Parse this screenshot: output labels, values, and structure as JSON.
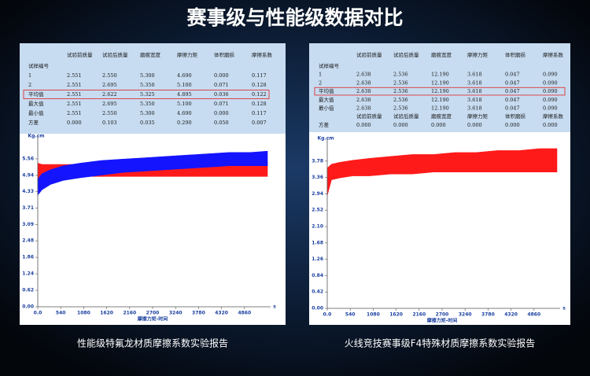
{
  "title": "赛事级与性能级数据对比",
  "captions": [
    "性能级特氟龙材质摩擦系数实验报告",
    "火线竞技赛事级F4特殊材质摩擦系数实验报告"
  ],
  "tables": [
    {
      "header": [
        "",
        "试验前质量",
        "试验后质量",
        "磨痕宽度",
        "摩擦力矩",
        "体积磨损",
        "摩擦系数"
      ],
      "highlight_row": 3,
      "rows": [
        [
          "试样编号"
        ],
        [
          "1",
          "2.551",
          "2.550",
          "5.300",
          "4.690",
          "0.000",
          "0.117"
        ],
        [
          "2",
          "2.551",
          "2.695",
          "5.350",
          "5.100",
          "0.071",
          "0.128"
        ],
        [
          "平均值",
          "2.551",
          "2.622",
          "5.325",
          "4.895",
          "0.036",
          "0.122"
        ],
        [
          "最大值",
          "2.551",
          "2.695",
          "5.350",
          "5.100",
          "0.071",
          "0.128"
        ],
        [
          "最小值",
          "2.551",
          "2.550",
          "5.300",
          "4.690",
          "0.000",
          "0.117"
        ],
        [
          "方差",
          "0.000",
          "0.103",
          "0.035",
          "0.290",
          "0.050",
          "0.007"
        ]
      ]
    },
    {
      "header": [
        "",
        "试验前质量",
        "试验后质量",
        "磨痕宽度",
        "摩擦力矩",
        "体积磨损",
        "摩擦系数"
      ],
      "highlight_row": 3,
      "rows": [
        [
          "试样编号"
        ],
        [
          "1",
          "2.638",
          "2.536",
          "12.190",
          "3.618",
          "0.047",
          "0.090"
        ],
        [
          "2",
          "2.638",
          "2.536",
          "12.190",
          "3.618",
          "0.047",
          "0.090"
        ],
        [
          "平均值",
          "2.638",
          "2.536",
          "12.190",
          "3.618",
          "0.047",
          "0.090"
        ],
        [
          "最大值",
          "2.638",
          "2.536",
          "12.190",
          "3.618",
          "0.047",
          "0.090"
        ],
        [
          "最小值",
          "2.638",
          "2.536",
          "12.190",
          "3.618",
          "0.047",
          "0.090"
        ],
        [
          "",
          "试验前质量",
          "试验后质量",
          "磨痕宽度",
          "摩擦力矩",
          "体积磨损",
          "摩擦系数"
        ],
        [
          "方差",
          "0.000",
          "0.000",
          "0.000",
          "0.000",
          "0.000",
          "0.000"
        ]
      ]
    }
  ],
  "chart_data": [
    {
      "type": "range",
      "y_unit": "Kg.cm",
      "x_unit": "s",
      "xlabel": "摩擦力矩-时间",
      "xlim": [
        0,
        5400
      ],
      "ylim": [
        0,
        6.18
      ],
      "xticks": [
        {
          "value": 0,
          "label": "0.0"
        },
        540,
        1080,
        1620,
        2160,
        2700,
        3240,
        3780,
        4320,
        4860
      ],
      "yticks": [
        {
          "value": 0,
          "label": "0.00"
        },
        0.62,
        1.24,
        1.86,
        2.48,
        3.09,
        3.71,
        4.33,
        4.94,
        5.56
      ],
      "x": [
        0,
        100,
        300,
        600,
        1000,
        1500,
        2000,
        2500,
        3000,
        3500,
        4000,
        4500,
        5000,
        5400
      ],
      "series": [
        {
          "color": "#ff1a1a",
          "low": [
            4.8,
            4.85,
            4.9,
            4.9,
            4.9,
            4.9,
            4.9,
            4.9,
            4.9,
            4.9,
            4.9,
            4.9,
            4.9,
            4.9
          ],
          "high": [
            5.4,
            5.35,
            5.35,
            5.35,
            5.35,
            5.35,
            5.4,
            5.4,
            5.4,
            5.4,
            5.45,
            5.45,
            5.45,
            5.45
          ]
        },
        {
          "color": "#1414ff",
          "low": [
            4.2,
            4.4,
            4.6,
            4.75,
            4.85,
            4.95,
            5.05,
            5.1,
            5.15,
            5.2,
            5.25,
            5.3,
            5.3,
            5.3
          ],
          "high": [
            4.8,
            5.0,
            5.15,
            5.3,
            5.4,
            5.5,
            5.55,
            5.6,
            5.65,
            5.7,
            5.75,
            5.8,
            5.8,
            5.85
          ]
        }
      ]
    },
    {
      "type": "range",
      "y_unit": "Kg.cm",
      "x_unit": "s",
      "xlabel": "摩擦力矩-时间",
      "xlim": [
        0,
        5400
      ],
      "ylim": [
        0,
        4.2
      ],
      "xticks": [
        {
          "value": 0,
          "label": "0.0"
        },
        540,
        1080,
        1620,
        2160,
        2700,
        3240,
        3780,
        4320,
        4860
      ],
      "yticks": [
        {
          "value": 0,
          "label": "0.00"
        },
        0.42,
        0.84,
        1.26,
        1.68,
        {
          "value": 2.1,
          "label": "2.10"
        },
        2.52,
        2.94,
        3.36,
        3.78
      ],
      "x": [
        0,
        100,
        300,
        600,
        1000,
        1500,
        2000,
        2500,
        3000,
        3500,
        4000,
        4500,
        5000,
        5400
      ],
      "series": [
        {
          "color": "#ff1a1a",
          "low": [
            2.9,
            3.3,
            3.35,
            3.4,
            3.4,
            3.45,
            3.45,
            3.5,
            3.5,
            3.5,
            3.5,
            3.5,
            3.5,
            3.5
          ],
          "high": [
            3.6,
            3.7,
            3.75,
            3.8,
            3.85,
            3.9,
            3.95,
            3.95,
            4.0,
            4.0,
            4.05,
            4.05,
            4.1,
            4.1
          ]
        }
      ]
    }
  ]
}
